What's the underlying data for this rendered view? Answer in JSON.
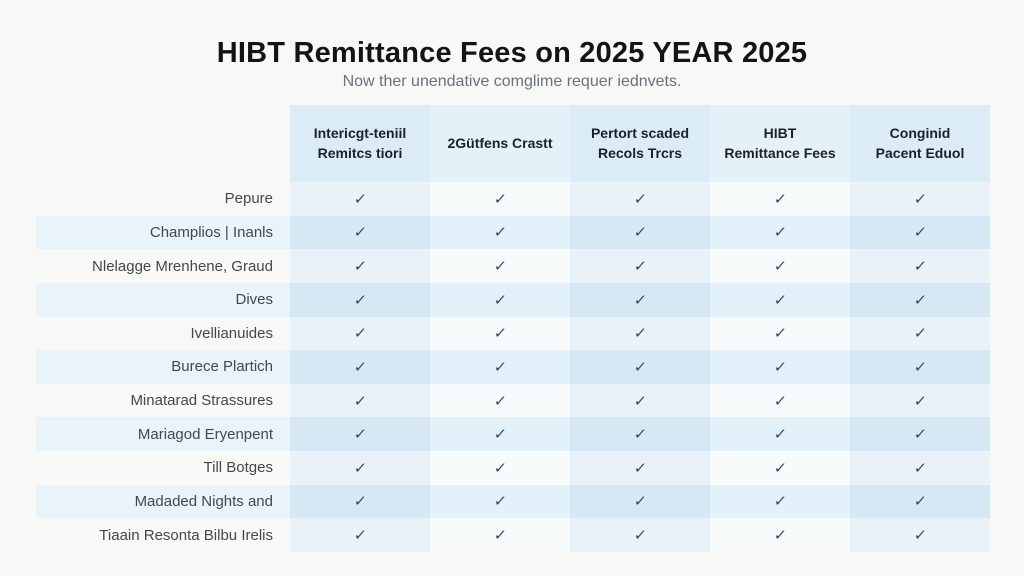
{
  "page": {
    "title": "HIBT Remittance Fees on 2025 YEAR 2025",
    "subtitle": "Now ther unendative comglime requer iednvets."
  },
  "chart_data": {
    "type": "table",
    "title": "HIBT Remittance Fees on 2025 YEAR 2025",
    "subtitle": "Now ther unendative comglime requer iednvets.",
    "columns": [
      "Intericgt-teniil\nRemitcs tiori",
      "2Gütfens Crastt",
      "Pertort scaded\nRecols Trcrs",
      "HIBT\nRemittance Fees",
      "Conginid\nPacent Eduol"
    ],
    "rows": [
      {
        "label": "Pepure",
        "checks": [
          true,
          true,
          true,
          true,
          true
        ]
      },
      {
        "label": "Champlios | Inanls",
        "checks": [
          true,
          true,
          true,
          true,
          true
        ]
      },
      {
        "label": "Nlelagge Mrenhene, Graud",
        "checks": [
          true,
          true,
          true,
          true,
          true
        ]
      },
      {
        "label": "Dives",
        "checks": [
          true,
          true,
          true,
          true,
          true
        ]
      },
      {
        "label": "Ivellianuides",
        "checks": [
          true,
          true,
          true,
          true,
          true
        ]
      },
      {
        "label": "Burece Plartich",
        "checks": [
          true,
          true,
          true,
          true,
          true
        ]
      },
      {
        "label": "Minatarad Strassures",
        "checks": [
          true,
          true,
          true,
          true,
          true
        ]
      },
      {
        "label": "Mariagod Eryenpent",
        "checks": [
          true,
          true,
          true,
          true,
          true
        ]
      },
      {
        "label": "Till Botges",
        "checks": [
          true,
          true,
          true,
          true,
          true
        ]
      },
      {
        "label": "Madaded Nights and",
        "checks": [
          true,
          true,
          true,
          true,
          true
        ]
      },
      {
        "label": "Tiaain Resonta Bilbu Irelis",
        "checks": [
          true,
          true,
          true,
          true,
          true
        ]
      }
    ],
    "check_glyph": "✓",
    "grid": "striped",
    "legend_position": "none"
  },
  "colors": {
    "page_bg": "#f8f8f6",
    "title_color": "#141414",
    "subtitle_color": "#68737c",
    "header_text": "#1c2126",
    "label_color": "#44484c",
    "check": "#2f4858",
    "header_col_tint": "#dbecf7",
    "header_col_lite": "#e4f1f9",
    "cell_tint": "#e9f2f9",
    "cell_lite": "#f8fbfc",
    "stripe_tint": "#d5e8f4",
    "stripe_lite": "#e3f1fa",
    "stripe_lite2": "#e8f3fa"
  }
}
